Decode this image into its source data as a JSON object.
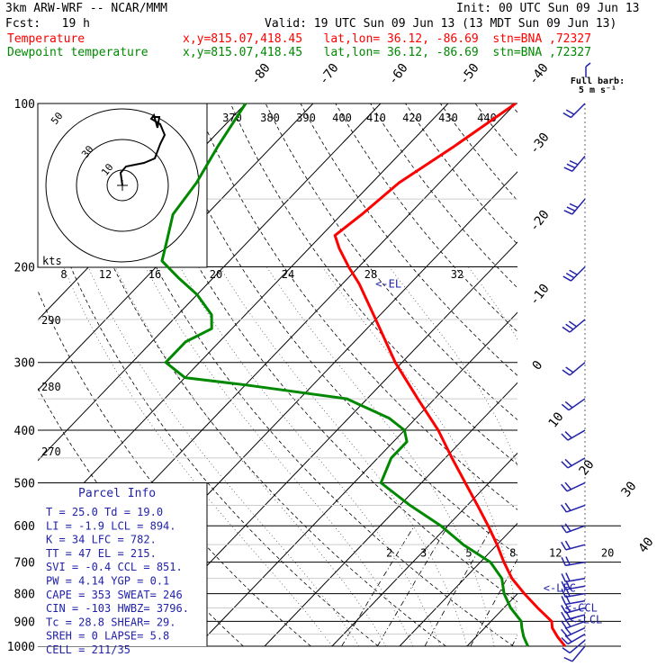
{
  "header": {
    "model": "3km ARW-WRF -- NCAR/MMM",
    "init": "Init: 00 UTC Sun 09 Jun 13",
    "fcst": "Fcst:   19 h",
    "valid": "Valid: 19 UTC Sun 09 Jun 13 (13 MDT Sun 09 Jun 13)",
    "temp_label": "Temperature",
    "dew_label": "Dewpoint temperature",
    "temp_loc": "x,y=815.07,418.45   lat,lon= 36.12, -86.69  stn=BNA ,72327",
    "dew_loc": "x,y=815.07,418.45   lat,lon= 36.12, -86.69  stn=BNA ,72327"
  },
  "colors": {
    "temperature": "#ff0000",
    "dewpoint": "#008800",
    "isotherm": "#000000",
    "barb": "#2222aa",
    "annotation": "#2222aa",
    "parcel_title": "#2222aa"
  },
  "legend": {
    "full_barb_line1": "Full barb:",
    "full_barb_line2": "5 m s⁻¹"
  },
  "hodograph": {
    "units": "kts",
    "ring_labels": [
      "10",
      "30",
      "50"
    ]
  },
  "parcel_info": {
    "title": "Parcel Info",
    "rows": [
      "T  =   25.0  Td =  19.0",
      "LI =   -1.9  LCL =  894.",
      "K  =     34  LFC =  782.",
      "TT =     47  EL  =  215.",
      "SVI =  -0.4  CCL =  851.",
      "PW =   4.14  YGP =   0.1",
      "CAPE =  353  SWEAT=  246",
      "CIN =  -103  HWBZ= 3796.",
      "Tc =   28.8  SHEAR=  29.",
      "SREH =    0  LAPSE=  5.8",
      "CELL = 211/35"
    ]
  },
  "chart_data": {
    "type": "line",
    "chart_kind": "skew-T log-p sounding",
    "y_axis": {
      "name": "pressure (hPa)",
      "scale": "log",
      "range": [
        1000,
        100
      ],
      "ticks": [
        100,
        200,
        300,
        400,
        500,
        600,
        700,
        800,
        900,
        1000
      ]
    },
    "isotherm_labels": [
      -80,
      -70,
      -60,
      -50,
      -40,
      -30,
      -20,
      -10,
      0,
      10,
      20,
      30,
      40
    ],
    "theta_labels_top": [
      370,
      380,
      390,
      400,
      410,
      420,
      430,
      440
    ],
    "theta_labels_left": [
      290,
      280,
      270
    ],
    "mixing_ratio_labels": [
      2,
      3,
      5,
      8,
      12,
      20
    ],
    "wetbulb_labels": [
      8,
      12,
      16,
      20,
      24,
      28,
      32
    ],
    "annotations": [
      {
        "text": "<-EL",
        "p": 215
      },
      {
        "text": "<-LFC",
        "p": 782
      },
      {
        "text": "<-CCL",
        "p": 851
      },
      {
        "text": "<-LCL",
        "p": 894
      }
    ],
    "series": [
      {
        "name": "Temperature",
        "p": [
          1000,
          960,
          925,
          900,
          850,
          800,
          750,
          700,
          650,
          600,
          550,
          500,
          450,
          400,
          350,
          300,
          250,
          215,
          200,
          185,
          175,
          160,
          140,
          120,
          100
        ],
        "t": [
          24.5,
          22.0,
          20.0,
          19.0,
          15.0,
          11.0,
          7.0,
          3.5,
          0.0,
          -4.0,
          -8.5,
          -13.5,
          -19.0,
          -25.0,
          -32.5,
          -41.0,
          -50.0,
          -57.5,
          -61.5,
          -65.5,
          -68.0,
          -67.0,
          -66.0,
          -63.0,
          -60.0
        ]
      },
      {
        "name": "Dewpoint temperature",
        "p": [
          1000,
          960,
          925,
          900,
          850,
          800,
          750,
          700,
          650,
          600,
          550,
          500,
          450,
          420,
          400,
          380,
          350,
          330,
          320,
          300,
          275,
          260,
          245,
          225,
          210,
          195,
          180,
          160,
          140,
          120,
          100
        ],
        "t": [
          19.0,
          17.0,
          15.5,
          14.5,
          11.0,
          8.0,
          5.5,
          1.5,
          -5.0,
          -11.0,
          -18.5,
          -26.0,
          -28.0,
          -28.0,
          -30.0,
          -34.0,
          -43.0,
          -60.0,
          -70.0,
          -75.0,
          -75.0,
          -73.0,
          -75.0,
          -80.0,
          -85.0,
          -90.0,
          -92.0,
          -95.0,
          -96.0,
          -98.0,
          -100.0
        ]
      }
    ],
    "wind_barbs": {
      "p": [
        1000,
        975,
        950,
        925,
        900,
        875,
        850,
        825,
        800,
        775,
        750,
        700,
        650,
        600,
        550,
        500,
        450,
        400,
        350,
        300,
        250,
        200,
        150,
        125,
        100
      ],
      "speed_ms": [
        5,
        5,
        10,
        10,
        10,
        10,
        10,
        10,
        10,
        10,
        10,
        10,
        10,
        10,
        10,
        10,
        10,
        10,
        10,
        10,
        15,
        15,
        15,
        15,
        10
      ],
      "dir_deg": [
        220,
        230,
        240,
        245,
        250,
        255,
        255,
        260,
        260,
        260,
        260,
        260,
        255,
        250,
        250,
        245,
        240,
        240,
        235,
        230,
        230,
        225,
        220,
        220,
        225
      ]
    }
  }
}
